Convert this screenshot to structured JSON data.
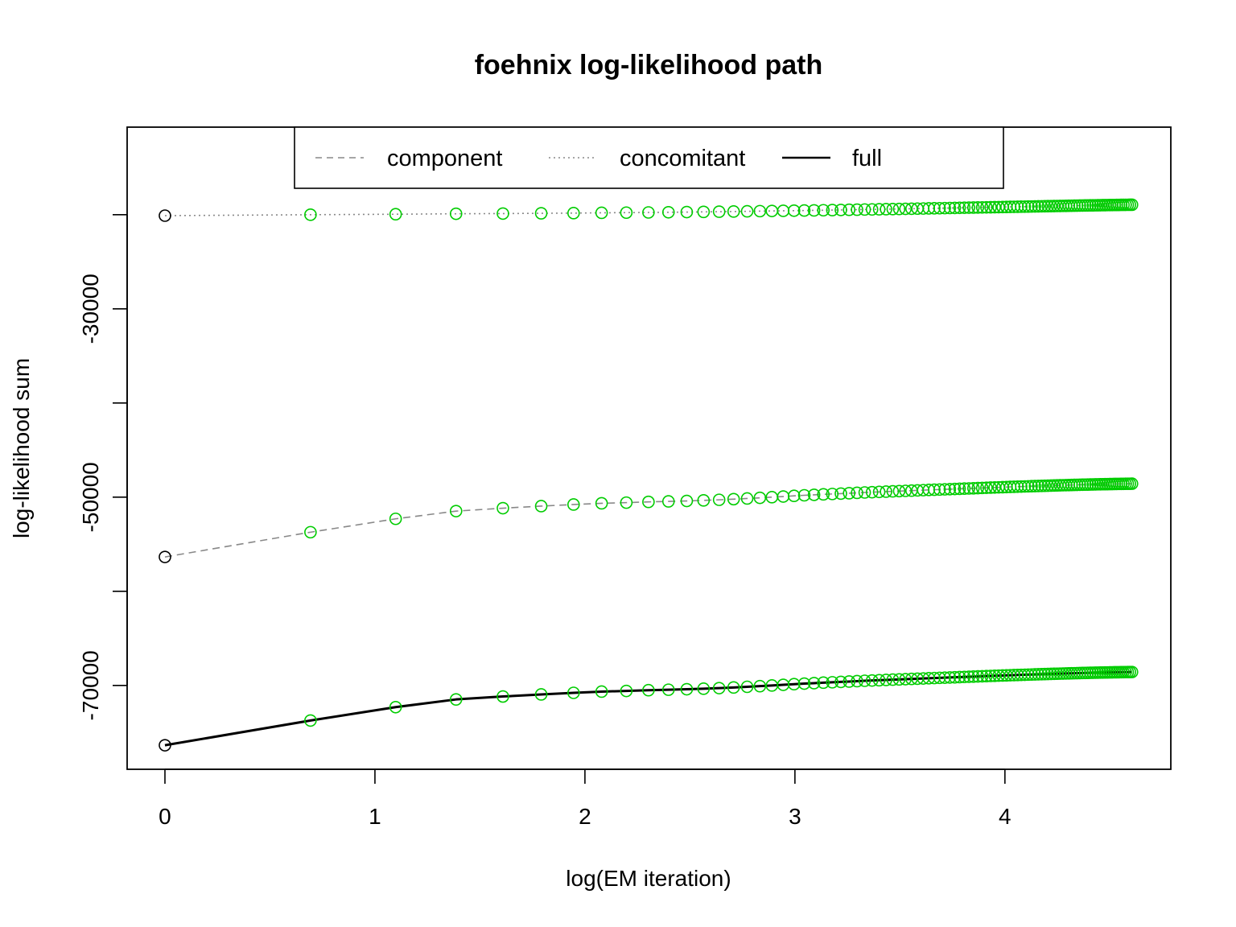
{
  "chart_data": {
    "type": "line",
    "title": "foehnix log-likelihood path",
    "xlabel": "log(EM iteration)",
    "ylabel": "log-likelihood sum",
    "xlim": [
      -0.18,
      4.79
    ],
    "ylim": [
      -78900,
      -10700
    ],
    "x_ticks": [
      0,
      1,
      2,
      3,
      4
    ],
    "x_tick_labels": [
      "0",
      "1",
      "2",
      "3",
      "4"
    ],
    "y_ticks": [
      -70000,
      -60000,
      -50000,
      -40000,
      -30000,
      -20000
    ],
    "y_tick_labels": [
      "-70000",
      "",
      "-50000",
      "",
      "-30000",
      ""
    ],
    "iterations": 100,
    "x_transform": "log",
    "legend": {
      "position": "top",
      "entries": [
        {
          "label": "component",
          "line": "dashed",
          "color": "#888888"
        },
        {
          "label": "concomitant",
          "line": "dotted",
          "color": "#888888"
        },
        {
          "label": "full",
          "line": "solid",
          "color": "#000000"
        }
      ]
    },
    "series": [
      {
        "key": "concomitant",
        "line": "dotted",
        "color": "#888888",
        "lineWidth": 1.6,
        "y": [
          -20100,
          -20000,
          -19950,
          -19900,
          -19880,
          -19850,
          -19830,
          -19800,
          -19780,
          -19760,
          -19740,
          -19720,
          -19700,
          -19680,
          -19660,
          -19640,
          -19620,
          -19600,
          -19585,
          -19570,
          -19555,
          -19540,
          -19525,
          -19510,
          -19495,
          -19480,
          -19465,
          -19450,
          -19438,
          -19426,
          -19414,
          -19402,
          -19390,
          -19378,
          -19366,
          -19354,
          -19342,
          -19330,
          -19320,
          -19310,
          -19300,
          -19290,
          -19280,
          -19270,
          -19260,
          -19250,
          -19242,
          -19234,
          -19226,
          -19218,
          -19210,
          -19202,
          -19194,
          -19186,
          -19178,
          -19170,
          -19163,
          -19156,
          -19149,
          -19142,
          -19135,
          -19128,
          -19121,
          -19114,
          -19107,
          -19100,
          -19094,
          -19088,
          -19082,
          -19076,
          -19070,
          -19064,
          -19058,
          -19052,
          -19046,
          -19040,
          -19035,
          -19030,
          -19025,
          -19020,
          -19015,
          -19010,
          -19005,
          -19000,
          -18996,
          -18992,
          -18988,
          -18984,
          -18980,
          -18976,
          -18972,
          -18968,
          -18964,
          -18960,
          -18957,
          -18954,
          -18951,
          -18948,
          -18945,
          -18942
        ]
      },
      {
        "key": "component",
        "line": "dashed",
        "color": "#888888",
        "lineWidth": 1.6,
        "y": [
          -56350,
          -53720,
          -52300,
          -51480,
          -51170,
          -50950,
          -50780,
          -50650,
          -50580,
          -50500,
          -50450,
          -50400,
          -50340,
          -50280,
          -50210,
          -50140,
          -50070,
          -50000,
          -49930,
          -49860,
          -49800,
          -49750,
          -49700,
          -49660,
          -49620,
          -49580,
          -49540,
          -49500,
          -49470,
          -49440,
          -49410,
          -49380,
          -49355,
          -49330,
          -49305,
          -49280,
          -49255,
          -49230,
          -49210,
          -49190,
          -49170,
          -49150,
          -49130,
          -49110,
          -49092,
          -49074,
          -49056,
          -49038,
          -49020,
          -49002,
          -48986,
          -48970,
          -48955,
          -48940,
          -48926,
          -48912,
          -48898,
          -48884,
          -48872,
          -48860,
          -48848,
          -48836,
          -48824,
          -48812,
          -48801,
          -48790,
          -48780,
          -48770,
          -48760,
          -48750,
          -48741,
          -48732,
          -48723,
          -48714,
          -48706,
          -48698,
          -48690,
          -48682,
          -48675,
          -48668,
          -48661,
          -48654,
          -48648,
          -48642,
          -48636,
          -48630,
          -48625,
          -48620,
          -48615,
          -48610,
          -48605,
          -48600,
          -48596,
          -48592,
          -48588,
          -48584,
          -48580,
          -48576,
          -48573,
          -48570
        ]
      },
      {
        "key": "full",
        "line": "solid",
        "color": "#000000",
        "lineWidth": 3,
        "y": [
          -76350,
          -73720,
          -72300,
          -71480,
          -71170,
          -70950,
          -70780,
          -70650,
          -70580,
          -70500,
          -70450,
          -70400,
          -70340,
          -70280,
          -70210,
          -70140,
          -70070,
          -70000,
          -69930,
          -69860,
          -69800,
          -69750,
          -69700,
          -69660,
          -69620,
          -69580,
          -69540,
          -69500,
          -69470,
          -69440,
          -69410,
          -69380,
          -69355,
          -69330,
          -69305,
          -69280,
          -69255,
          -69230,
          -69210,
          -69190,
          -69170,
          -69150,
          -69130,
          -69110,
          -69092,
          -69074,
          -69056,
          -69038,
          -69020,
          -69002,
          -68986,
          -68970,
          -68955,
          -68940,
          -68926,
          -68912,
          -68898,
          -68884,
          -68872,
          -68860,
          -68848,
          -68836,
          -68824,
          -68812,
          -68801,
          -68790,
          -68780,
          -68770,
          -68760,
          -68750,
          -68741,
          -68732,
          -68723,
          -68714,
          -68706,
          -68698,
          -68690,
          -68682,
          -68675,
          -68668,
          -68661,
          -68654,
          -68648,
          -68642,
          -68636,
          -68630,
          -68625,
          -68620,
          -68615,
          -68610,
          -68605,
          -68600,
          -68596,
          -68592,
          -68588,
          -68584,
          -68580,
          -68576,
          -68573,
          -68570
        ]
      }
    ],
    "markers": {
      "shape": "open-circle",
      "first_point_color": "#000000",
      "other_points_color": "#00cc00"
    }
  }
}
